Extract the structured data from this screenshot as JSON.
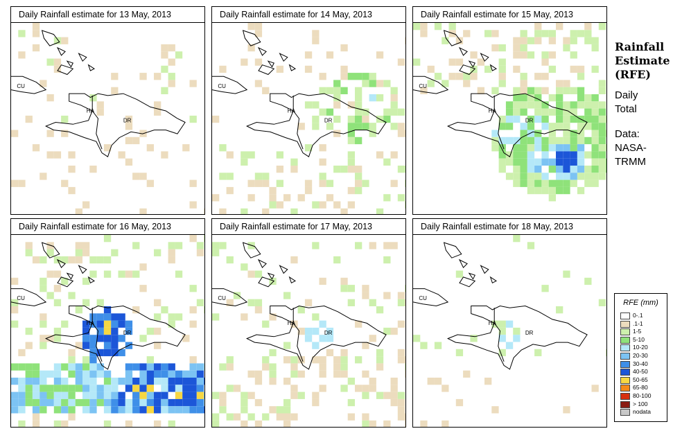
{
  "panels": [
    {
      "title": "Daily Rainfall estimate for  13 May, 2013",
      "day": 13
    },
    {
      "title": "Daily Rainfall estimate for  14 May, 2013",
      "day": 14
    },
    {
      "title": "Daily Rainfall estimate for  15 May, 2013",
      "day": 15
    },
    {
      "title": "Daily Rainfall estimate for  16 May, 2013",
      "day": 16
    },
    {
      "title": "Daily Rainfall estimate for  17 May, 2013",
      "day": 17
    },
    {
      "title": "Daily Rainfall estimate for  18 May, 2013",
      "day": 18
    }
  ],
  "map_labels": {
    "cuba": "CU",
    "haiti": "HA",
    "dominican_republic": "DR"
  },
  "sidebar": {
    "title_line1": "Rainfall",
    "title_line2": "Estimate",
    "title_line3": "(RFE)",
    "period_line1": "Daily",
    "period_line2": "Total",
    "source_line1": "Data:",
    "source_line2": "NASA-",
    "source_line3": "TRMM"
  },
  "legend": {
    "title": "RFE (mm)",
    "classes": [
      {
        "label": "0-.1",
        "color": "#ffffff"
      },
      {
        "label": ".1-1",
        "color": "#ecdcbe"
      },
      {
        "label": "1-5",
        "color": "#cdf0ad"
      },
      {
        "label": "5-10",
        "color": "#8fe27a"
      },
      {
        "label": "10-20",
        "color": "#b4e8f8"
      },
      {
        "label": "20-30",
        "color": "#7cc3f3"
      },
      {
        "label": "30-40",
        "color": "#3f8fe8"
      },
      {
        "label": "40-50",
        "color": "#1c56d8"
      },
      {
        "label": "50-65",
        "color": "#f7d743"
      },
      {
        "label": "65-80",
        "color": "#f58a1a"
      },
      {
        "label": "80-100",
        "color": "#d6300f"
      },
      {
        "label": "> 100",
        "color": "#8a1c13"
      },
      {
        "label": "nodata",
        "color": "#c8c8c8"
      }
    ]
  }
}
